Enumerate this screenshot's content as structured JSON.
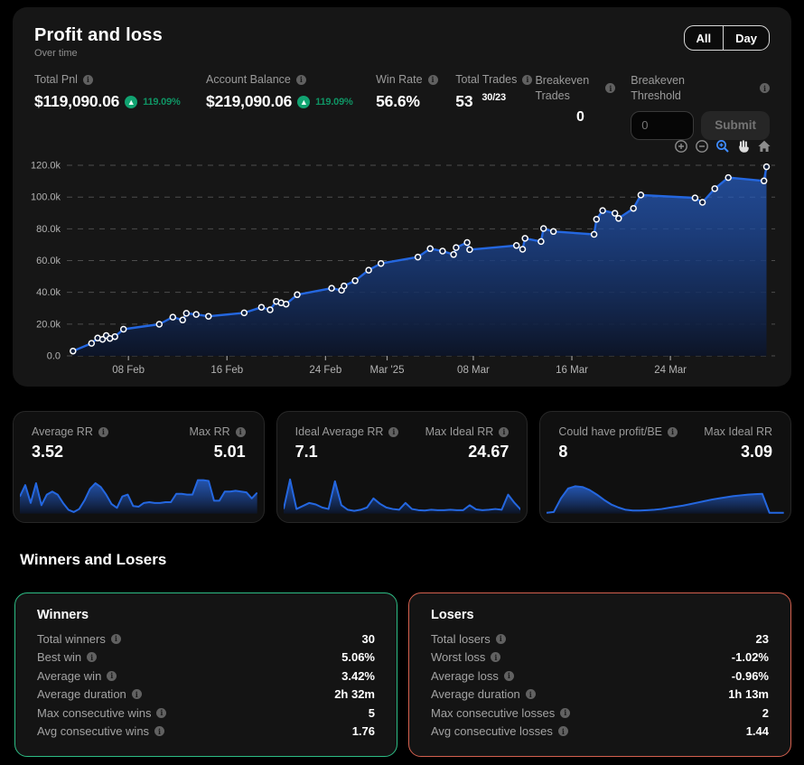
{
  "header": {
    "title": "Profit and loss",
    "subtitle": "Over time",
    "toggle_all": "All",
    "toggle_day": "Day"
  },
  "stats": {
    "total_pnl": {
      "label": "Total Pnl",
      "value": "$119,090.06",
      "change": "119.09%"
    },
    "account_balance": {
      "label": "Account Balance",
      "value": "$219,090.06",
      "change": "119.09%"
    },
    "win_rate": {
      "label": "Win Rate",
      "value": "56.6%"
    },
    "total_trades": {
      "label": "Total Trades",
      "value": "53",
      "detail": "30/23"
    },
    "breakeven_trades": {
      "label": "Breakeven Trades",
      "value": "0"
    },
    "breakeven_threshold": {
      "label": "Breakeven Threshold",
      "input_placeholder": "0",
      "submit_label": "Submit"
    }
  },
  "colors": {
    "accent_blue": "#2467e0",
    "marker_fill": "#101f3c",
    "grid": "#4d4d4d",
    "positive_green": "#11a371",
    "winners_border": "#2dbd85",
    "losers_border": "#d4604e"
  },
  "chart_data": {
    "type": "area",
    "title": "Cumulative profit and loss over time (USD)",
    "x_unit": "days since 03 Feb 2025",
    "xlim": [
      0,
      57.5
    ],
    "ylim": [
      0,
      124000
    ],
    "grid": "dashed",
    "markers": true,
    "points": [
      [
        0.5,
        3000
      ],
      [
        2.0,
        7900
      ],
      [
        2.5,
        11200
      ],
      [
        2.9,
        10400
      ],
      [
        3.2,
        12800
      ],
      [
        3.5,
        11000
      ],
      [
        3.9,
        12100
      ],
      [
        4.6,
        16800
      ],
      [
        7.5,
        19900
      ],
      [
        8.6,
        24400
      ],
      [
        9.4,
        22600
      ],
      [
        9.7,
        26800
      ],
      [
        10.5,
        26100
      ],
      [
        11.5,
        24900
      ],
      [
        14.4,
        27100
      ],
      [
        15.8,
        30600
      ],
      [
        16.5,
        29000
      ],
      [
        17.0,
        34300
      ],
      [
        17.4,
        33400
      ],
      [
        17.8,
        32600
      ],
      [
        18.7,
        38500
      ],
      [
        21.5,
        42600
      ],
      [
        22.3,
        41300
      ],
      [
        22.5,
        44000
      ],
      [
        23.4,
        47300
      ],
      [
        24.5,
        54000
      ],
      [
        25.5,
        58200
      ],
      [
        28.5,
        62200
      ],
      [
        29.5,
        67500
      ],
      [
        30.5,
        66000
      ],
      [
        31.4,
        63800
      ],
      [
        31.6,
        68200
      ],
      [
        32.5,
        71400
      ],
      [
        32.7,
        66900
      ],
      [
        36.5,
        69500
      ],
      [
        37.0,
        67100
      ],
      [
        37.2,
        74000
      ],
      [
        38.5,
        72000
      ],
      [
        38.7,
        80200
      ],
      [
        39.5,
        78300
      ],
      [
        42.8,
        76500
      ],
      [
        43.0,
        86000
      ],
      [
        43.5,
        91500
      ],
      [
        44.5,
        89800
      ],
      [
        44.8,
        86600
      ],
      [
        46.0,
        92900
      ],
      [
        46.6,
        101300
      ],
      [
        51.0,
        99500
      ],
      [
        51.6,
        96700
      ],
      [
        52.6,
        105300
      ],
      [
        53.7,
        112300
      ],
      [
        56.6,
        110200
      ],
      [
        56.8,
        119090
      ]
    ],
    "xticks": [
      {
        "pos": 5,
        "label": "08 Feb"
      },
      {
        "pos": 13,
        "label": "16 Feb"
      },
      {
        "pos": 21,
        "label": "24 Feb"
      },
      {
        "pos": 26,
        "label": "Mar '25"
      },
      {
        "pos": 33,
        "label": "08 Mar"
      },
      {
        "pos": 41,
        "label": "16 Mar"
      },
      {
        "pos": 49,
        "label": "24 Mar"
      }
    ],
    "yticks": [
      {
        "value": 0,
        "label": "0.0"
      },
      {
        "value": 20000,
        "label": "20.0k"
      },
      {
        "value": 40000,
        "label": "40.0k"
      },
      {
        "value": 60000,
        "label": "60.0k"
      },
      {
        "value": 80000,
        "label": "80.0k"
      },
      {
        "value": 100000,
        "label": "100.0k"
      },
      {
        "value": 120000,
        "label": "120.0k"
      }
    ]
  },
  "rr_cards": [
    {
      "left_label": "Average RR",
      "left_value": "3.52",
      "right_label": "Max RR",
      "right_value": "5.01",
      "left_info": true,
      "right_info": true,
      "spark": [
        0.45,
        0.75,
        0.28,
        0.8,
        0.22,
        0.5,
        0.58,
        0.5,
        0.28,
        0.1,
        0.04,
        0.12,
        0.35,
        0.65,
        0.8,
        0.7,
        0.5,
        0.25,
        0.15,
        0.45,
        0.5,
        0.2,
        0.18,
        0.28,
        0.3,
        0.28,
        0.28,
        0.3,
        0.3,
        0.52,
        0.52,
        0.5,
        0.5,
        0.88,
        0.88,
        0.86,
        0.34,
        0.34,
        0.58,
        0.58,
        0.6,
        0.58,
        0.56,
        0.4,
        0.55
      ]
    },
    {
      "left_label": "Ideal Average RR",
      "left_value": "7.1",
      "right_label": "Max Ideal RR",
      "right_value": "24.67",
      "left_info": true,
      "right_info": true,
      "spark": [
        0.12,
        0.9,
        0.12,
        0.2,
        0.28,
        0.24,
        0.16,
        0.12,
        0.85,
        0.22,
        0.1,
        0.07,
        0.1,
        0.16,
        0.4,
        0.26,
        0.16,
        0.12,
        0.1,
        0.28,
        0.12,
        0.09,
        0.08,
        0.1,
        0.09,
        0.09,
        0.1,
        0.09,
        0.09,
        0.22,
        0.11,
        0.09,
        0.1,
        0.12,
        0.1,
        0.5,
        0.28,
        0.1
      ]
    },
    {
      "left_label": "Could have profit/BE",
      "left_value": "8",
      "right_label": "Max Ideal RR",
      "right_value": "3.09",
      "left_info": true,
      "right_info": false,
      "spark": [
        0.02,
        0.04,
        0.4,
        0.66,
        0.72,
        0.7,
        0.62,
        0.5,
        0.36,
        0.24,
        0.16,
        0.1,
        0.08,
        0.08,
        0.09,
        0.1,
        0.12,
        0.15,
        0.18,
        0.21,
        0.25,
        0.29,
        0.33,
        0.37,
        0.4,
        0.43,
        0.46,
        0.48,
        0.5,
        0.51,
        0.52,
        0.02,
        0.02,
        0.02
      ]
    }
  ],
  "winners_losers": {
    "section_title": "Winners and Losers",
    "winners": {
      "title": "Winners",
      "rows": [
        {
          "label": "Total winners",
          "value": "30"
        },
        {
          "label": "Best win",
          "value": "5.06%"
        },
        {
          "label": "Average win",
          "value": "3.42%"
        },
        {
          "label": "Average duration",
          "value": "2h 32m"
        },
        {
          "label": "Max consecutive wins",
          "value": "5"
        },
        {
          "label": "Avg consecutive wins",
          "value": "1.76"
        }
      ]
    },
    "losers": {
      "title": "Losers",
      "rows": [
        {
          "label": "Total losers",
          "value": "23"
        },
        {
          "label": "Worst loss",
          "value": "-1.02%"
        },
        {
          "label": "Average loss",
          "value": "-0.96%"
        },
        {
          "label": "Average duration",
          "value": "1h 13m"
        },
        {
          "label": "Max consecutive losses",
          "value": "2"
        },
        {
          "label": "Avg consecutive losses",
          "value": "1.44"
        }
      ]
    }
  }
}
